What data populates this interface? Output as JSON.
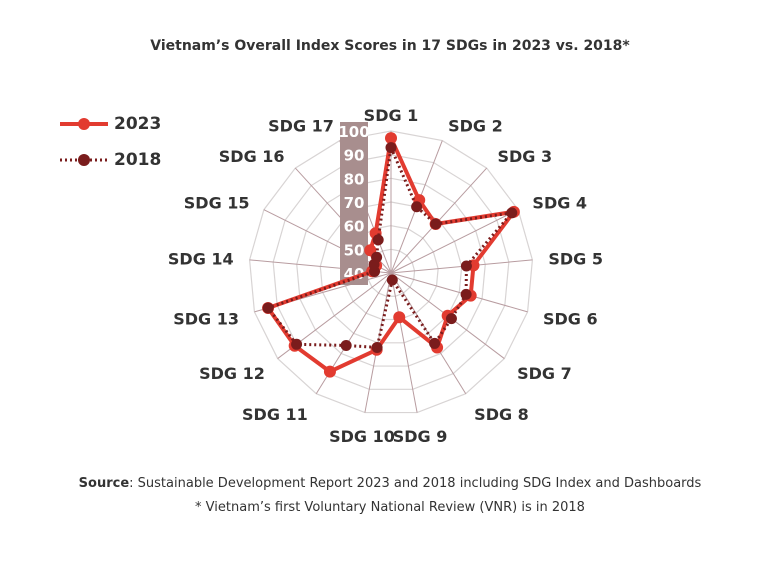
{
  "chart_data": {
    "type": "radar",
    "title": "Vietnam’s Overall Index Scores in 17 SDGs in 2023 vs. 2018*",
    "categories": [
      "SDG 1",
      "SDG 2",
      "SDG 3",
      "SDG 4",
      "SDG 5",
      "SDG 6",
      "SDG 7",
      "SDG 8",
      "SDG 9",
      "SDG 10",
      "SDG 11",
      "SDG 12",
      "SDG 13",
      "SDG 14",
      "SDG 15",
      "SDG 16",
      "SDG 17"
    ],
    "radial_range": [
      40,
      100
    ],
    "radial_ticks": [
      "100",
      "90",
      "80",
      "70",
      "60",
      "50",
      "40"
    ],
    "grid": true,
    "legend_position": "left",
    "series": [
      {
        "name": "2023",
        "color": "#e23b30",
        "style": "solid",
        "values": [
          97,
          73,
          68,
          98,
          75,
          75,
          70,
          77,
          59,
          73,
          89,
          91,
          94,
          48,
          47,
          53,
          58
        ]
      },
      {
        "name": "2018",
        "color": "#7a1c1c",
        "style": "dotted",
        "values": [
          93,
          70,
          68,
          97,
          72,
          73,
          72,
          75,
          43,
          72,
          76,
          90,
          94,
          47,
          48,
          49,
          55
        ]
      }
    ]
  },
  "footer": {
    "source_label": "Source",
    "source_text": ": Sustainable Development Report 2023 and 2018 including SDG Index and Dashboards",
    "note": "* Vietnam’s first Voluntary National Review (VNR) is in 2018"
  }
}
